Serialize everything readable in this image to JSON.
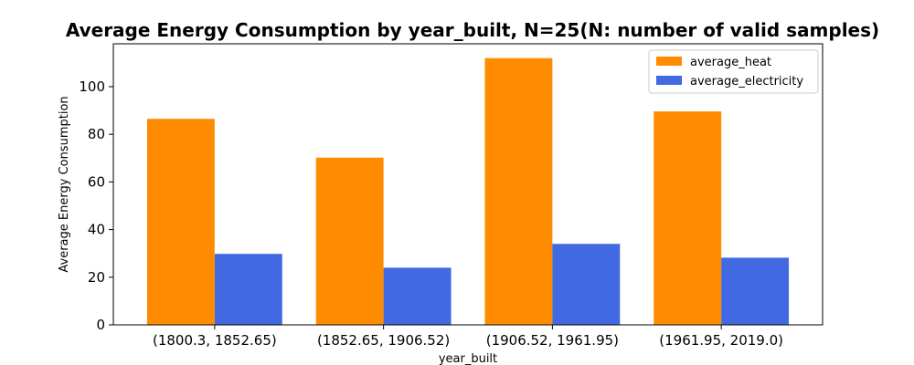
{
  "chart_data": {
    "type": "bar",
    "title": "Average Energy Consumption by year_built, N=25(N: number of valid samples)",
    "xlabel": "year_built",
    "ylabel": "Average Energy Consumption",
    "categories": [
      "(1800.3, 1852.65)",
      "(1852.65, 1906.52)",
      "(1906.52, 1961.95)",
      "(1961.95, 2019.0)"
    ],
    "series": [
      {
        "name": "average_heat",
        "color": "#ff8c00",
        "values": [
          86.5,
          70.2,
          112.0,
          89.6
        ]
      },
      {
        "name": "average_electricity",
        "color": "#4169e1",
        "values": [
          29.8,
          24.0,
          34.0,
          28.2
        ]
      }
    ],
    "ylim": [
      0,
      118
    ],
    "yticks": [
      0,
      20,
      40,
      60,
      80,
      100
    ],
    "grid": false,
    "legend_position": "top-right"
  }
}
